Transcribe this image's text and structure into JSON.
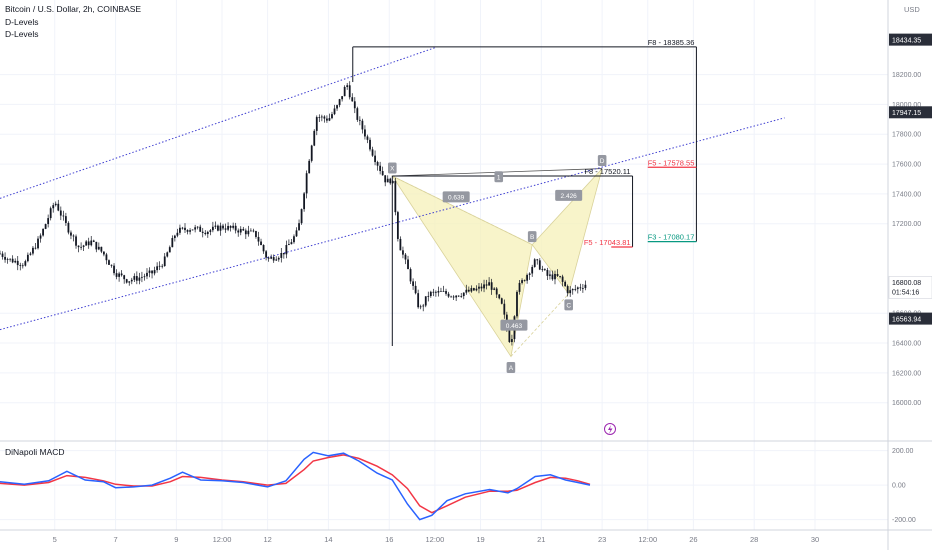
{
  "header": {
    "symbol_title": "Bitcoin / U.S. Dollar, 2h, COINBASE",
    "indicators": [
      "D-Levels",
      "D-Levels"
    ]
  },
  "colors": {
    "bull": "#26a69a",
    "bear": "#ef5350",
    "candle": "#131722",
    "channel": "#3f3fd1",
    "pattern_fill": "#f5f0b8",
    "macd": "#2962ff",
    "signal": "#f23645",
    "level_green": "#089981",
    "level_red": "#f23645",
    "dark_label": "#2a2e39",
    "price_label": "#131722"
  },
  "chart_data": {
    "type": "candlestick",
    "title": "Bitcoin / U.S. Dollar, 2h, COINBASE",
    "currency_label": "USD",
    "ylim": [
      15750,
      18700
    ],
    "y_ticks": [
      16000,
      16200,
      16400,
      16600,
      17200,
      17400,
      17600,
      17800,
      18000,
      18200
    ],
    "y_tick_labels": [
      "16000.00",
      "16200.00",
      "16400.00",
      "16600.00",
      "17200.00",
      "17400.00",
      "17600.00",
      "17800.00",
      "18000.00",
      "18200.00"
    ],
    "x_ticks": [
      {
        "label": "5",
        "day": 5
      },
      {
        "label": "7",
        "day": 7
      },
      {
        "label": "9",
        "day": 9
      },
      {
        "label": "12:00",
        "day": 10.5
      },
      {
        "label": "12",
        "day": 12
      },
      {
        "label": "14",
        "day": 14
      },
      {
        "label": "16",
        "day": 16
      },
      {
        "label": "12:00",
        "day": 17.5
      },
      {
        "label": "19",
        "day": 19
      },
      {
        "label": "21",
        "day": 21
      },
      {
        "label": "23",
        "day": 23
      },
      {
        "label": "12:00",
        "day": 24.5
      },
      {
        "label": "26",
        "day": 26
      },
      {
        "label": "28",
        "day": 28
      },
      {
        "label": "30",
        "day": 30
      }
    ],
    "x_range_days": [
      3.2,
      32.4
    ],
    "price_path": [
      [
        3.2,
        17000
      ],
      [
        3.5,
        16960
      ],
      [
        4.0,
        16930
      ],
      [
        4.5,
        17100
      ],
      [
        5.0,
        17350
      ],
      [
        5.4,
        17180
      ],
      [
        5.8,
        17040
      ],
      [
        6.2,
        17080
      ],
      [
        6.6,
        17000
      ],
      [
        7.0,
        16870
      ],
      [
        7.4,
        16820
      ],
      [
        7.8,
        16840
      ],
      [
        8.2,
        16870
      ],
      [
        8.6,
        16950
      ],
      [
        9.0,
        17150
      ],
      [
        9.5,
        17170
      ],
      [
        10.0,
        17150
      ],
      [
        10.5,
        17180
      ],
      [
        11.0,
        17160
      ],
      [
        11.6,
        17130
      ],
      [
        12.0,
        16960
      ],
      [
        12.5,
        17000
      ],
      [
        13.0,
        17150
      ],
      [
        13.3,
        17560
      ],
      [
        13.6,
        17920
      ],
      [
        14.0,
        17900
      ],
      [
        14.3,
        17990
      ],
      [
        14.6,
        18140
      ],
      [
        14.9,
        17930
      ],
      [
        15.2,
        17800
      ],
      [
        15.5,
        17650
      ],
      [
        15.9,
        17480
      ],
      [
        16.1,
        17500
      ],
      [
        16.3,
        17080
      ],
      [
        16.6,
        16900
      ],
      [
        17.0,
        16620
      ],
      [
        17.3,
        16730
      ],
      [
        17.7,
        16740
      ],
      [
        18.1,
        16720
      ],
      [
        18.5,
        16740
      ],
      [
        18.9,
        16760
      ],
      [
        19.3,
        16800
      ],
      [
        19.7,
        16650
      ],
      [
        20.0,
        16380
      ],
      [
        20.2,
        16760
      ],
      [
        20.5,
        16850
      ],
      [
        20.8,
        16950
      ],
      [
        21.2,
        16850
      ],
      [
        21.6,
        16840
      ],
      [
        21.9,
        16740
      ],
      [
        22.1,
        16760
      ],
      [
        22.5,
        16800
      ]
    ],
    "current_price": "16800.08",
    "countdown": "01:54:16",
    "price_labels": [
      {
        "price": 18434.35,
        "label": "18434.35"
      },
      {
        "price": 17947.15,
        "label": "17947.15"
      },
      {
        "price": 16563.94,
        "label": "16563.94"
      }
    ],
    "channel_upper": [
      [
        3.2,
        17370
      ],
      [
        17.5,
        18380
      ]
    ],
    "channel_lower": [
      [
        3.2,
        16490
      ],
      [
        29.0,
        17910
      ]
    ],
    "level_lines": [
      {
        "label": "F8 - 18385.36",
        "price": 18385.36,
        "x_start": 14.8,
        "x_end": 26.1,
        "color": "dark"
      },
      {
        "label": "F8 - 17520.11",
        "price": 17520.11,
        "x_start": 16.1,
        "x_end": 24.0,
        "color": "dark"
      },
      {
        "label": "F5 - 17578.55",
        "price": 17578.55,
        "x_start": 24.5,
        "x_end": 26.1,
        "color": "red"
      },
      {
        "label": "F5 - 17043.81",
        "price": 17043.81,
        "x_start": 23.3,
        "x_end": 24.0,
        "color": "red"
      },
      {
        "label": "F3 - 17080.17",
        "price": 17080.17,
        "x_start": 24.5,
        "x_end": 26.1,
        "color": "green"
      }
    ],
    "harmonic_pattern": {
      "points": [
        {
          "label": "X",
          "day": 16.1,
          "price": 17520
        },
        {
          "label": "A",
          "day": 20.0,
          "price": 16310
        },
        {
          "label": "B",
          "day": 20.7,
          "price": 17060
        },
        {
          "label": "C",
          "day": 21.9,
          "price": 16730
        },
        {
          "label": "D",
          "day": 23.0,
          "price": 17570
        }
      ],
      "ratios": [
        {
          "label": "0.639",
          "day": 18.2,
          "price": 17380
        },
        {
          "label": "2.426",
          "day": 21.9,
          "price": 17390
        },
        {
          "label": "0.463",
          "day": 20.1,
          "price": 16520
        }
      ],
      "xd_label": "1",
      "xd_label_day": 19.6
    },
    "macd": {
      "title": "DiNapoli MACD",
      "ylim": [
        -260,
        250
      ],
      "y_ticks": [
        200,
        0,
        -200
      ],
      "y_tick_labels": [
        "200.00",
        "0.00",
        "-200.00"
      ],
      "macd_line": [
        [
          3.2,
          20
        ],
        [
          4.0,
          5
        ],
        [
          4.8,
          25
        ],
        [
          5.4,
          80
        ],
        [
          6.0,
          30
        ],
        [
          6.6,
          20
        ],
        [
          7.0,
          -15
        ],
        [
          7.6,
          -10
        ],
        [
          8.2,
          0
        ],
        [
          8.8,
          40
        ],
        [
          9.2,
          75
        ],
        [
          9.8,
          30
        ],
        [
          10.5,
          25
        ],
        [
          11.2,
          15
        ],
        [
          12.0,
          -10
        ],
        [
          12.6,
          25
        ],
        [
          13.2,
          150
        ],
        [
          13.5,
          190
        ],
        [
          14.0,
          170
        ],
        [
          14.5,
          185
        ],
        [
          15.0,
          140
        ],
        [
          15.6,
          70
        ],
        [
          16.1,
          30
        ],
        [
          16.6,
          -110
        ],
        [
          17.0,
          -200
        ],
        [
          17.4,
          -175
        ],
        [
          17.9,
          -90
        ],
        [
          18.5,
          -50
        ],
        [
          19.3,
          -25
        ],
        [
          19.9,
          -45
        ],
        [
          20.2,
          -20
        ],
        [
          20.8,
          50
        ],
        [
          21.3,
          60
        ],
        [
          21.8,
          30
        ],
        [
          22.2,
          15
        ],
        [
          22.6,
          0
        ]
      ],
      "signal_line": [
        [
          3.2,
          10
        ],
        [
          4.0,
          0
        ],
        [
          4.8,
          15
        ],
        [
          5.4,
          55
        ],
        [
          6.0,
          45
        ],
        [
          6.6,
          25
        ],
        [
          7.0,
          5
        ],
        [
          7.6,
          -5
        ],
        [
          8.2,
          -5
        ],
        [
          8.8,
          20
        ],
        [
          9.2,
          50
        ],
        [
          9.8,
          45
        ],
        [
          10.5,
          30
        ],
        [
          11.2,
          20
        ],
        [
          12.0,
          0
        ],
        [
          12.6,
          10
        ],
        [
          13.2,
          90
        ],
        [
          13.5,
          140
        ],
        [
          14.0,
          160
        ],
        [
          14.5,
          175
        ],
        [
          15.0,
          155
        ],
        [
          15.6,
          110
        ],
        [
          16.1,
          60
        ],
        [
          16.6,
          -20
        ],
        [
          17.0,
          -120
        ],
        [
          17.4,
          -160
        ],
        [
          17.9,
          -120
        ],
        [
          18.5,
          -70
        ],
        [
          19.3,
          -35
        ],
        [
          19.9,
          -35
        ],
        [
          20.2,
          -30
        ],
        [
          20.8,
          15
        ],
        [
          21.3,
          45
        ],
        [
          21.8,
          40
        ],
        [
          22.2,
          25
        ],
        [
          22.6,
          5
        ]
      ]
    }
  }
}
